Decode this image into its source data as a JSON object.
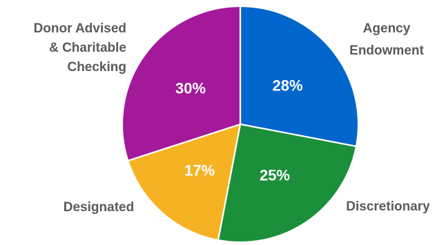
{
  "chart_data": {
    "type": "pie",
    "title": "",
    "slices": [
      {
        "label": "Agency Endowment",
        "label_lines": [
          "Agency",
          "Endowment"
        ],
        "value": 28,
        "display": "28%",
        "color": "#0066cc"
      },
      {
        "label": "Discretionary",
        "label_lines": [
          "Discretionary"
        ],
        "value": 25,
        "display": "25%",
        "color": "#1b8f3a"
      },
      {
        "label": "Designated",
        "label_lines": [
          "Designated"
        ],
        "value": 17,
        "display": "17%",
        "color": "#f5b324"
      },
      {
        "label": "Donor Advised & Charitable Checking",
        "label_lines": [
          "Donor Advised",
          "& Charitable",
          "Checking"
        ],
        "value": 30,
        "display": "30%",
        "color": "#a3199a"
      }
    ],
    "start": "12 o'clock",
    "direction": "clockwise",
    "legend": "none",
    "label_placement": "outside"
  }
}
